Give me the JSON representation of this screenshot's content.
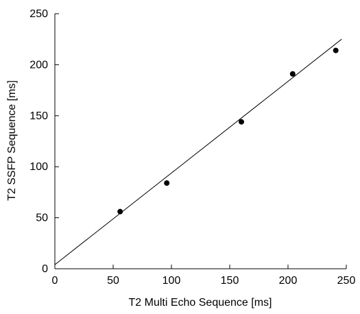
{
  "chart_data": {
    "type": "scatter",
    "xlabel": "T2 Multi Echo Sequence [ms]",
    "ylabel": "T2 SSFP Sequence [ms]",
    "xlim": [
      0,
      250
    ],
    "ylim": [
      0,
      250
    ],
    "xticks": [
      0,
      50,
      100,
      150,
      200,
      250
    ],
    "yticks": [
      0,
      50,
      100,
      150,
      200,
      250
    ],
    "xtick_labels": [
      "0",
      "50",
      "100",
      "150",
      "200",
      "250"
    ],
    "ytick_labels": [
      "0",
      "50",
      "100",
      "150",
      "200",
      "250"
    ],
    "grid": false,
    "points": [
      {
        "x": 56,
        "y": 56
      },
      {
        "x": 96,
        "y": 84
      },
      {
        "x": 160,
        "y": 144
      },
      {
        "x": 204,
        "y": 191
      },
      {
        "x": 241,
        "y": 214
      }
    ],
    "fit_line": {
      "from": [
        0,
        4
      ],
      "to": [
        246,
        225
      ]
    },
    "colors": {
      "marker": "#000000",
      "line": "#000000",
      "axis": "#000000"
    }
  }
}
